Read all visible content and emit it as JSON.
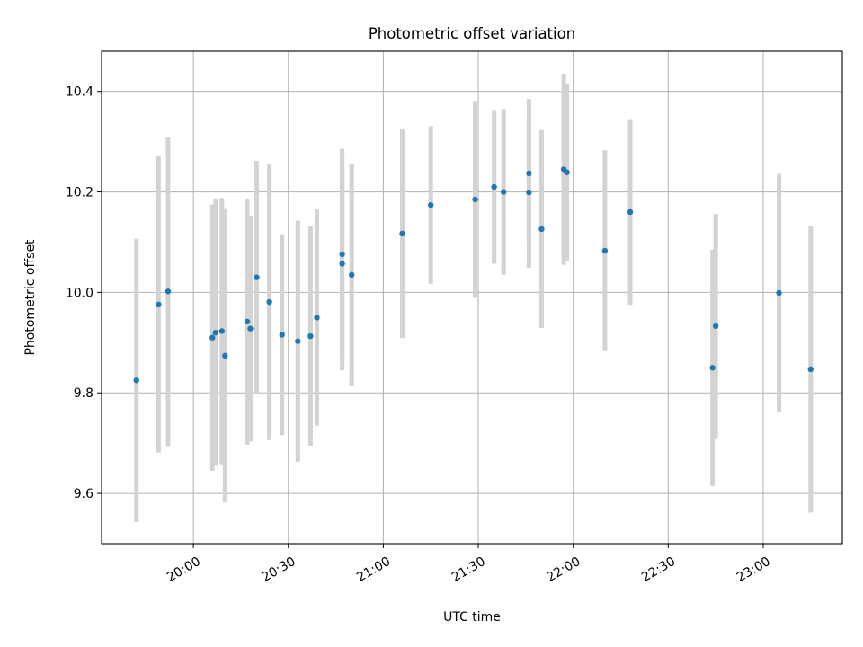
{
  "chart_data": {
    "type": "scatter",
    "title": "Photometric offset variation",
    "xlabel": "UTC time",
    "ylabel": "Photometric offset",
    "x_axis_type": "time",
    "xlim": [
      "19:31",
      "23:25"
    ],
    "ylim": [
      9.5,
      10.48
    ],
    "x_ticks": [
      "20:00",
      "20:30",
      "21:00",
      "21:30",
      "22:00",
      "22:30",
      "23:00"
    ],
    "y_ticks": [
      "9.6",
      "9.8",
      "10.0",
      "10.2",
      "10.4"
    ],
    "grid": true,
    "marker_color": "#1f77b4",
    "errorbar_color": "#d3d3d3",
    "points": [
      {
        "x": "19:42",
        "y": 9.825,
        "yerr": 0.282
      },
      {
        "x": "19:49",
        "y": 9.976,
        "yerr": 0.295
      },
      {
        "x": "19:52",
        "y": 10.002,
        "yerr": 0.308
      },
      {
        "x": "20:06",
        "y": 9.91,
        "yerr": 0.265
      },
      {
        "x": "20:07",
        "y": 9.92,
        "yerr": 0.265
      },
      {
        "x": "20:09",
        "y": 9.923,
        "yerr": 0.265
      },
      {
        "x": "20:10",
        "y": 9.874,
        "yerr": 0.292
      },
      {
        "x": "20:17",
        "y": 9.942,
        "yerr": 0.245
      },
      {
        "x": "20:18",
        "y": 9.928,
        "yerr": 0.225
      },
      {
        "x": "20:20",
        "y": 10.03,
        "yerr": 0.232
      },
      {
        "x": "20:24",
        "y": 9.981,
        "yerr": 0.275
      },
      {
        "x": "20:28",
        "y": 9.916,
        "yerr": 0.2
      },
      {
        "x": "20:33",
        "y": 9.903,
        "yerr": 0.24
      },
      {
        "x": "20:37",
        "y": 9.913,
        "yerr": 0.218
      },
      {
        "x": "20:39",
        "y": 9.95,
        "yerr": 0.215
      },
      {
        "x": "20:47",
        "y": 10.076,
        "yerr": 0.21
      },
      {
        "x": "20:47",
        "y": 10.057,
        "yerr": 0.212
      },
      {
        "x": "20:50",
        "y": 10.035,
        "yerr": 0.222
      },
      {
        "x": "21:06",
        "y": 10.117,
        "yerr": 0.208
      },
      {
        "x": "21:15",
        "y": 10.174,
        "yerr": 0.157
      },
      {
        "x": "21:29",
        "y": 10.185,
        "yerr": 0.196
      },
      {
        "x": "21:35",
        "y": 10.21,
        "yerr": 0.153
      },
      {
        "x": "21:38",
        "y": 10.2,
        "yerr": 0.165
      },
      {
        "x": "21:46",
        "y": 10.237,
        "yerr": 0.148
      },
      {
        "x": "21:46",
        "y": 10.199,
        "yerr": 0.15
      },
      {
        "x": "21:50",
        "y": 10.126,
        "yerr": 0.197
      },
      {
        "x": "21:57",
        "y": 10.245,
        "yerr": 0.19
      },
      {
        "x": "21:58",
        "y": 10.239,
        "yerr": 0.176
      },
      {
        "x": "22:10",
        "y": 10.083,
        "yerr": 0.2
      },
      {
        "x": "22:18",
        "y": 10.16,
        "yerr": 0.185
      },
      {
        "x": "22:44",
        "y": 9.85,
        "yerr": 0.235
      },
      {
        "x": "22:45",
        "y": 9.933,
        "yerr": 0.223
      },
      {
        "x": "23:05",
        "y": 9.999,
        "yerr": 0.237
      },
      {
        "x": "23:15",
        "y": 9.847,
        "yerr": 0.285
      }
    ]
  }
}
